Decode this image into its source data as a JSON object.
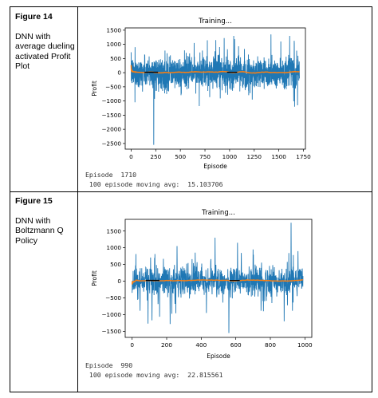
{
  "rows": [
    {
      "figure_label": "Figure 14",
      "caption": "DNN with average dueling activated Profit Plot",
      "console_line1": "Episode  1710",
      "console_line2": " 100 episode moving avg:  15.103706"
    },
    {
      "figure_label": "Figure 15",
      "caption": "DNN with Boltzmann Q Policy",
      "console_line1": "Episode  990",
      "console_line2": " 100 episode moving avg:  22.815561"
    }
  ],
  "chart_data": [
    {
      "type": "line",
      "title": "Training...",
      "xlabel": "Episode",
      "ylabel": "Profit",
      "xlim": [
        -60,
        1770
      ],
      "ylim": [
        -2700,
        1580
      ],
      "xticks": [
        0,
        250,
        500,
        750,
        1000,
        1250,
        1500,
        1750
      ],
      "yticks": [
        1500,
        1000,
        500,
        0,
        -500,
        -1000,
        -1500,
        -2000,
        -2500
      ],
      "grid": false,
      "n_episodes": 1710,
      "series": [
        {
          "color": "#1f77b4",
          "noise_scale": 260,
          "spikes": [
            [
              230,
              -2550
            ],
            [
              1420,
              1350
            ],
            [
              1610,
              1300
            ],
            [
              1660,
              -1200
            ],
            [
              860,
              1150
            ],
            [
              1230,
              -950
            ],
            [
              40,
              900
            ],
            [
              1520,
              1100
            ],
            [
              1690,
              -1150
            ],
            [
              980,
              -780
            ],
            [
              640,
              1050
            ]
          ]
        },
        {
          "color": "#ff7f0e",
          "moving_average_window": 100,
          "avg_level": 15.103706
        },
        {
          "color": "#000000",
          "avg_level": 15.103706
        }
      ]
    },
    {
      "type": "line",
      "title": "Training...",
      "xlabel": "Episode",
      "ylabel": "Profit",
      "xlim": [
        -40,
        1040
      ],
      "ylim": [
        -1680,
        1850
      ],
      "xticks": [
        0,
        200,
        400,
        600,
        800,
        1000
      ],
      "yticks": [
        1500,
        1000,
        500,
        0,
        -500,
        -1000,
        -1500
      ],
      "grid": false,
      "n_episodes": 990,
      "series": [
        {
          "color": "#1f77b4",
          "noise_scale": 230,
          "spikes": [
            [
              920,
              1750
            ],
            [
              480,
              1300
            ],
            [
              220,
              -1280
            ],
            [
              560,
              -1550
            ],
            [
              610,
              1150
            ],
            [
              260,
              1050
            ],
            [
              880,
              -1200
            ],
            [
              700,
              950
            ],
            [
              760,
              -900
            ],
            [
              430,
              -950
            ],
            [
              960,
              900
            ],
            [
              130,
              700
            ]
          ]
        },
        {
          "color": "#ff7f0e",
          "moving_average_window": 100,
          "avg_level": 22.815561
        },
        {
          "color": "#000000",
          "avg_level": 22.815561
        }
      ]
    }
  ]
}
